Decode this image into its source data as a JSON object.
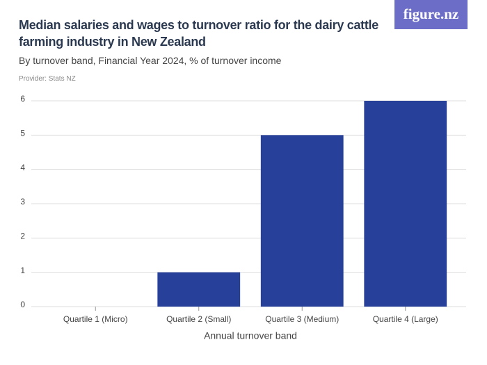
{
  "brand": "figure.nz",
  "chart_data": {
    "type": "bar",
    "title": "Median salaries and wages to turnover ratio for the dairy cattle farming industry in New Zealand",
    "subtitle": "By turnover band, Financial Year 2024, % of turnover income",
    "provider": "Provider: Stats NZ",
    "x_label": "Annual turnover band",
    "categories": [
      "Quartile 1 (Micro)",
      "Quartile 2 (Small)",
      "Quartile 3 (Medium)",
      "Quartile 4 (Large)"
    ],
    "values": [
      0,
      1,
      5,
      6
    ],
    "color": "#27419b",
    "ylim": [
      0,
      6
    ],
    "yticks": [
      0,
      1,
      2,
      3,
      4,
      5,
      6
    ],
    "grid": true
  }
}
